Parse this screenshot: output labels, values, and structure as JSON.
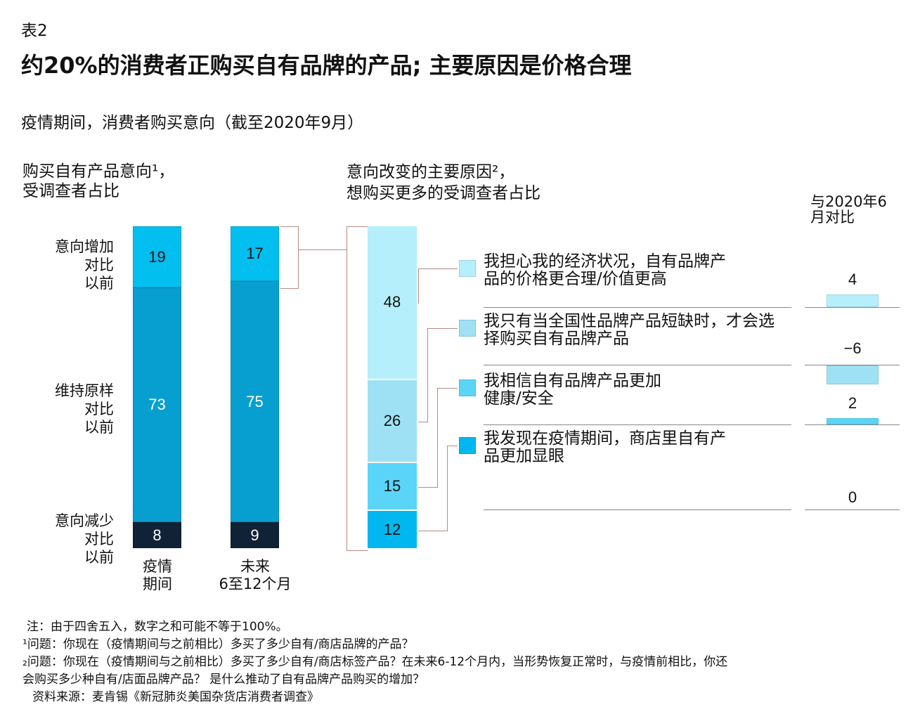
{
  "header": {
    "table_no": "表2",
    "title": "约20%的消费者正购买自有品牌的产品; 主要原因是价格合理",
    "subtitle": "疫情期间，消费者购买意向（截至2020年9月）"
  },
  "chart_data": [
    {
      "type": "bar",
      "stacked": true,
      "title": "购买自有产品意向¹，受调查者占比",
      "title_lines": [
        "购买自有产品意向¹，",
        "受调查者占比"
      ],
      "categories": [
        "疫情期间",
        "未来6至12个月"
      ],
      "category_lines": [
        [
          "疫情",
          "期间"
        ],
        [
          "未来",
          "6至12个月"
        ]
      ],
      "series": [
        {
          "name": "意向增加对比以前",
          "name_lines": [
            "意向增加",
            "对比",
            "以前"
          ],
          "values": [
            19,
            17
          ],
          "color": "#02bff0"
        },
        {
          "name": "维持原样对比以前",
          "name_lines": [
            "维持原样",
            "对比",
            "以前"
          ],
          "values": [
            73,
            75
          ],
          "color": "#079fcf"
        },
        {
          "name": "意向减少对比以前",
          "name_lines": [
            "意向减少",
            "对比",
            "以前"
          ],
          "values": [
            8,
            9
          ],
          "color": "#0f2236"
        }
      ],
      "ylim": [
        0,
        100
      ]
    },
    {
      "type": "bar",
      "stacked": true,
      "title": "意向改变的主要原因²，想购买更多的受调查者占比",
      "title_lines": [
        "意向改变的主要原因²，",
        "想购买更多的受调查者占比"
      ],
      "series": [
        {
          "name": "我担心我的经济状况，自有品牌产品的价格更合理/价值更高",
          "lines": [
            "我担心我的经济状况，自有品牌产",
            "品的价格更合理/价值更高"
          ],
          "value": 48,
          "change": 4,
          "color": "#b5effb"
        },
        {
          "name": "我只有当全国性品牌产品短缺时，才会选择购买自有品牌产品",
          "lines": [
            "我只有当全国性品牌产品短缺时，才会选",
            "择购买自有品牌产品"
          ],
          "value": 26,
          "change": -6,
          "color": "#9fe1f4"
        },
        {
          "name": "我相信自有品牌产品更加健康/安全",
          "lines": [
            "我相信自有品牌产品更加",
            "健康/安全"
          ],
          "value": 15,
          "change": 2,
          "color": "#5ad5f7"
        },
        {
          "name": "我发现在疫情期间，商店里自有产品更加显眼",
          "lines": [
            "我发现在疫情期间，商店里自有产",
            "品更加显眼"
          ],
          "value": 12,
          "change": 0,
          "color": "#00b7f0"
        }
      ],
      "change_title_lines": [
        "与2020年6",
        "月对比"
      ]
    }
  ],
  "footnotes": {
    "note": "注：由于四舍五入，数字之和可能不等于100%。",
    "q1": "¹问题：你现在（疫情期间与之前相比）多买了多少自有/商店品牌的产品？",
    "q2a": "₂问题：你现在（疫情期间与之前相比）多买了多少自有/商店标签产品？在未来6-12个月内，当形势恢复正常时，与疫情前相比，你还",
    "q2b": "会购买多少种自有/店面品牌产品？ 是什么推动了自有品牌产品购买的增加？",
    "source": "资料来源：麦肯锡《新冠肺炎美国杂货店消费者调查》"
  }
}
